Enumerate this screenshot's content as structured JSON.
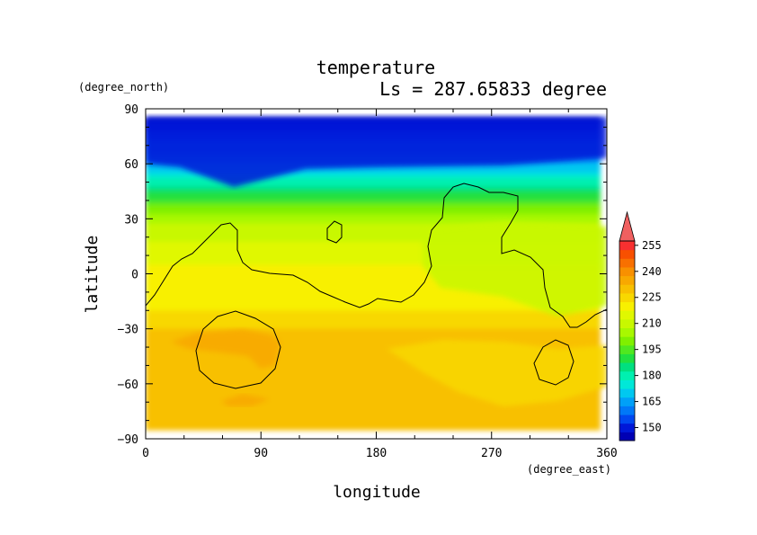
{
  "chart_data": {
    "type": "heatmap",
    "title": "temperature",
    "subtitle": "Ls = 287.65833 degree",
    "xlabel": "longitude",
    "ylabel": "latitude",
    "xunit": "(degree_east)",
    "yunit": "(degree_north)",
    "xlim": [
      0,
      360
    ],
    "ylim": [
      -90,
      90
    ],
    "x_ticks": [
      0,
      90,
      180,
      270,
      360
    ],
    "y_ticks": [
      -90,
      -60,
      -30,
      0,
      30,
      60,
      90
    ],
    "data_extent": {
      "lon": [
        0,
        355
      ],
      "lat": [
        -85,
        85
      ]
    },
    "colorbar": {
      "levels": [
        145,
        150,
        155,
        160,
        165,
        170,
        175,
        180,
        185,
        190,
        195,
        200,
        205,
        210,
        215,
        220,
        225,
        230,
        235,
        240,
        245,
        250,
        255,
        260
      ],
      "labels": [
        150,
        165,
        180,
        195,
        210,
        225,
        240,
        255
      ],
      "colors": [
        "#0000b4",
        "#0018d8",
        "#0048f0",
        "#0078f8",
        "#00a0f8",
        "#00c8f0",
        "#00e8d8",
        "#00f0b0",
        "#00e080",
        "#20e040",
        "#50e820",
        "#80f000",
        "#a8f800",
        "#c8f800",
        "#e0f800",
        "#f8f000",
        "#f8d800",
        "#f8c000",
        "#f8a800",
        "#f89000",
        "#f87000",
        "#f85000",
        "#f83030"
      ],
      "overflow_color": "#f06060"
    },
    "contour_color": "#000000",
    "grid": false,
    "legend": "right"
  }
}
